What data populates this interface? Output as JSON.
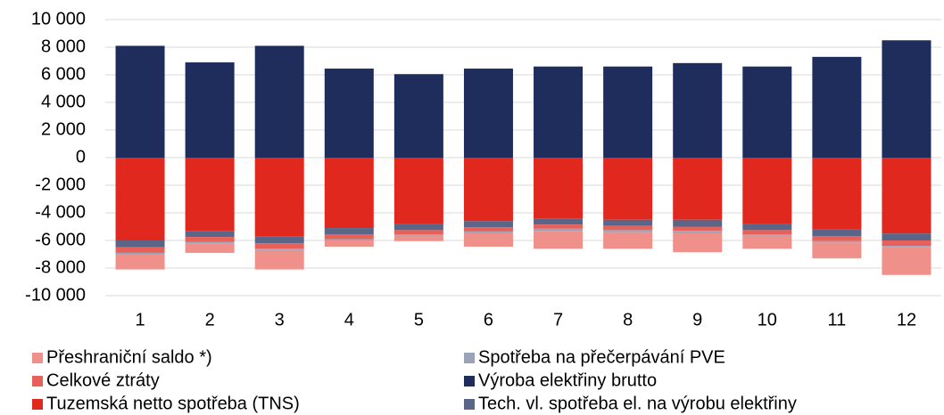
{
  "chart_data": {
    "type": "stacked_bar",
    "categories": [
      "1",
      "2",
      "3",
      "4",
      "5",
      "6",
      "7",
      "8",
      "9",
      "10",
      "11",
      "12"
    ],
    "series": [
      {
        "name": "Tuzemská netto spotřeba (TNS)",
        "color": "#e0281e",
        "values": [
          -6000,
          -5300,
          -5700,
          -5100,
          -4800,
          -4600,
          -4400,
          -4500,
          -4500,
          -4800,
          -5200,
          -5500
        ]
      },
      {
        "name": "Tech. vl. spotřeba el. na výrobu elektřiny",
        "color": "#5a6587",
        "values": [
          -500,
          -450,
          -500,
          -450,
          -450,
          -450,
          -450,
          -450,
          -500,
          -450,
          -500,
          -500
        ]
      },
      {
        "name": "Celkové ztráty",
        "color": "#e8605a",
        "values": [
          -400,
          -350,
          -400,
          -350,
          -300,
          -300,
          -300,
          -300,
          -300,
          -300,
          -350,
          -400
        ]
      },
      {
        "name": "Spotřeba na přečerpávání PVE",
        "color": "#9aa3b8",
        "values": [
          -100,
          -100,
          -100,
          -100,
          -100,
          -100,
          -150,
          -150,
          -150,
          -100,
          -100,
          -100
        ]
      },
      {
        "name": "Přeshraniční saldo *)",
        "color": "#f0908a",
        "values": [
          -1100,
          -700,
          -1400,
          -450,
          -400,
          -1000,
          -1300,
          -1200,
          -1400,
          -950,
          -1150,
          -2000
        ]
      },
      {
        "name": "Výroba elektřiny brutto",
        "color": "#1f2d5c",
        "values": [
          8100,
          6900,
          8100,
          6450,
          6050,
          6450,
          6600,
          6600,
          6850,
          6600,
          7300,
          8500
        ]
      }
    ],
    "ylim": [
      -10000,
      10000
    ],
    "yticks": [
      {
        "value": 10000,
        "label": "10 000"
      },
      {
        "value": 8000,
        "label": "8 000"
      },
      {
        "value": 6000,
        "label": "6 000"
      },
      {
        "value": 4000,
        "label": "4 000"
      },
      {
        "value": 2000,
        "label": "2 000"
      },
      0,
      {
        "value": -2000,
        "label": "-2 000"
      },
      {
        "value": -4000,
        "label": "-4 000"
      },
      {
        "value": -6000,
        "label": "-6 000"
      },
      {
        "value": -8000,
        "label": "-8 000"
      },
      {
        "value": -10000,
        "label": "-10 000"
      }
    ],
    "grid": true
  }
}
